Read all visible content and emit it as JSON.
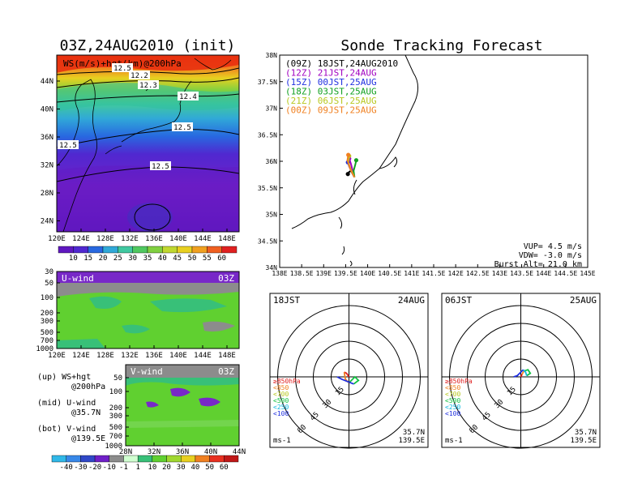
{
  "map_panel": {
    "title": "03Z,24AUG2010 (init)",
    "panel_label": "WS(m/s)+hgt(km)@200hPa",
    "x_ticks": [
      "120E",
      "124E",
      "128E",
      "132E",
      "136E",
      "140E",
      "144E",
      "148E"
    ],
    "y_ticks": [
      "44N",
      "40N",
      "36N",
      "32N",
      "28N",
      "24N"
    ],
    "contour_labels": [
      "12.2",
      "12.3",
      "12.4",
      "12.5",
      "12.5",
      "12.5",
      "12.5"
    ],
    "colorbar": {
      "ticks": [
        "10",
        "15",
        "20",
        "25",
        "30",
        "35",
        "40",
        "45",
        "50",
        "55",
        "60"
      ],
      "colors": [
        "#6018c0",
        "#5028d0",
        "#2868e0",
        "#30a8d8",
        "#40c8a0",
        "#50c860",
        "#80d040",
        "#c0d830",
        "#e8d020",
        "#f0a020",
        "#f06020",
        "#e02020"
      ]
    }
  },
  "u_panel": {
    "label": "U-wind",
    "time_label": "03Z",
    "y_ticks": [
      "30",
      "50",
      "100",
      "200",
      "300",
      "500",
      "700",
      "1000"
    ],
    "x_ticks": [
      "120E",
      "124E",
      "128E",
      "132E",
      "136E",
      "140E",
      "144E",
      "148E"
    ]
  },
  "v_panel": {
    "label": "V-wind",
    "time_label": "03Z",
    "y_ticks": [
      "50",
      "100",
      "200",
      "300",
      "500",
      "700",
      "1000"
    ],
    "x_ticks": [
      "28N",
      "32N",
      "36N",
      "40N",
      "44N"
    ]
  },
  "notes": {
    "up_line1": "(up) WS+hgt",
    "up_line2": "@200hPa",
    "mid_line1": "(mid) U-wind",
    "mid_line2": "@35.7N",
    "bot_line1": "(bot) V-wind",
    "bot_line2": "@139.5E"
  },
  "wind_colorbar": {
    "ticks": [
      "-40",
      "-30",
      "-20",
      "-10",
      "-1",
      "1",
      "10",
      "20",
      "30",
      "40",
      "50",
      "60"
    ],
    "colors": [
      "#30b8e8",
      "#3888e8",
      "#3048c8",
      "#7020c8",
      "#8c8c8c",
      "#d0ffd0",
      "#38c078",
      "#60d030",
      "#a0d830",
      "#e8d020",
      "#f08020",
      "#e83020",
      "#c01818"
    ]
  },
  "tracking": {
    "title": "Sonde Tracking Forecast",
    "vup": "VUP= 4.5 m/s",
    "vdw": "VDW= -3.0 m/s",
    "burst": "Burst Alt= 21.0 km",
    "x_ticks": [
      "138E",
      "138.5E",
      "139E",
      "139.5E",
      "140E",
      "140.5E",
      "141E",
      "141.5E",
      "142E",
      "142.5E",
      "143E",
      "143.5E",
      "144E",
      "144.5E",
      "145E"
    ],
    "y_ticks": [
      "38N",
      "37.5N",
      "37N",
      "36.5N",
      "36N",
      "35.5N",
      "35N",
      "34.5N",
      "34N"
    ],
    "legend": [
      {
        "text": "(09Z) 18JST,24AUG2010",
        "color": "#000000"
      },
      {
        "text": "(12Z) 21JST,24AUG",
        "color": "#a000c0"
      },
      {
        "text": "(15Z) 00JST,25AUG",
        "color": "#2030e0"
      },
      {
        "text": "(18Z) 03JST,25AUG",
        "color": "#10a020"
      },
      {
        "text": "(21Z) 06JST,25AUG",
        "color": "#b8c820"
      },
      {
        "text": "(00Z) 09JST,25AUG",
        "color": "#f08020"
      }
    ]
  },
  "chart_data": [
    {
      "type": "line",
      "title": "Sonde Tracking Forecast",
      "xlabel": "",
      "ylabel": "",
      "xlim": [
        138,
        145
      ],
      "ylim": [
        34,
        38
      ],
      "series": [
        {
          "name": "(09Z) 18JST,24AUG2010",
          "x": [
            139.7,
            139.62,
            139.58,
            139.55
          ],
          "y": [
            35.7,
            35.82,
            35.8,
            35.76
          ]
        },
        {
          "name": "(12Z) 21JST,24AUG",
          "x": [
            139.7,
            139.66,
            139.62,
            139.58
          ],
          "y": [
            35.7,
            35.82,
            35.95,
            36.05
          ]
        },
        {
          "name": "(15Z) 00JST,25AUG",
          "x": [
            139.7,
            139.64,
            139.58,
            139.55
          ],
          "y": [
            35.7,
            35.8,
            35.9,
            35.98
          ]
        },
        {
          "name": "(18Z) 03JST,25AUG",
          "x": [
            139.7,
            139.68,
            139.72,
            139.74
          ],
          "y": [
            35.7,
            35.82,
            35.94,
            36.02
          ]
        },
        {
          "name": "(21Z) 06JST,25AUG",
          "x": [
            139.7,
            139.62,
            139.56,
            139.58
          ],
          "y": [
            35.7,
            35.84,
            35.98,
            36.1
          ]
        },
        {
          "name": "(00Z) 09JST,25AUG",
          "x": [
            139.7,
            139.6,
            139.54,
            139.56
          ],
          "y": [
            35.7,
            35.86,
            36.02,
            36.12
          ]
        }
      ]
    },
    {
      "type": "scatter",
      "header_left": "18JST",
      "header_right": "24AUG",
      "ring_labels": [
        "15",
        "30",
        "45",
        "60"
      ],
      "unit_label": "ms-1",
      "location": [
        "35.7N",
        "139.5E"
      ],
      "pressure_legend": [
        {
          "text": "≥850hPa",
          "color": "#e02020"
        },
        {
          "text": "<850",
          "color": "#f08020"
        },
        {
          "text": "<700",
          "color": "#b8c820"
        },
        {
          "text": "<500",
          "color": "#10c040"
        },
        {
          "text": "<250",
          "color": "#10b8e0"
        },
        {
          "text": "<100",
          "color": "#2030e0"
        }
      ],
      "segments": [
        {
          "color": "#e02020",
          "u": [
            0,
            -2,
            -4
          ],
          "v": [
            0,
            3,
            4
          ]
        },
        {
          "color": "#f08020",
          "u": [
            -4,
            -3,
            0
          ],
          "v": [
            4,
            -2,
            -5
          ]
        },
        {
          "color": "#10c040",
          "u": [
            0,
            5,
            8,
            4
          ],
          "v": [
            -5,
            0,
            -3,
            -6
          ]
        },
        {
          "color": "#2030e0",
          "u": [
            4,
            -6,
            -10
          ],
          "v": [
            -6,
            -2,
            0
          ]
        }
      ]
    },
    {
      "type": "scatter",
      "header_left": "06JST",
      "header_right": "25AUG",
      "ring_labels": [
        "15",
        "30",
        "45",
        "60"
      ],
      "unit_label": "ms-1",
      "location": [
        "35.7N",
        "139.5E"
      ],
      "pressure_legend": [
        {
          "text": "≥850hPa",
          "color": "#e02020"
        },
        {
          "text": "<850",
          "color": "#f08020"
        },
        {
          "text": "<700",
          "color": "#b8c820"
        },
        {
          "text": "<500",
          "color": "#10c040"
        },
        {
          "text": "<250",
          "color": "#10b8e0"
        },
        {
          "text": "<100",
          "color": "#2030e0"
        }
      ],
      "segments": [
        {
          "color": "#e02020",
          "u": [
            0,
            1
          ],
          "v": [
            0,
            2
          ]
        },
        {
          "color": "#f08020",
          "u": [
            1,
            2,
            3
          ],
          "v": [
            2,
            4,
            5
          ]
        },
        {
          "color": "#10c040",
          "u": [
            3,
            6,
            8,
            5
          ],
          "v": [
            5,
            6,
            3,
            1
          ]
        },
        {
          "color": "#10b8e0",
          "u": [
            5,
            4,
            2
          ],
          "v": [
            1,
            4,
            6
          ]
        },
        {
          "color": "#2030e0",
          "u": [
            2,
            -3,
            -6
          ],
          "v": [
            6,
            1,
            0
          ]
        }
      ]
    }
  ]
}
